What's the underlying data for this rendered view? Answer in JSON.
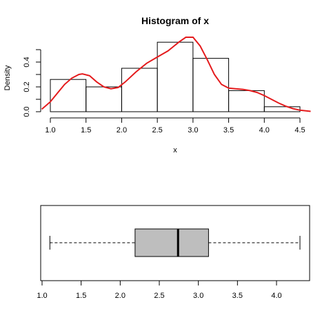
{
  "chart_data": [
    {
      "type": "histogram",
      "title": "Histogram of x",
      "xlabel": "x",
      "ylabel": "Density",
      "x_ticks": [
        "1.0",
        "1.5",
        "2.0",
        "2.5",
        "3.0",
        "3.5",
        "4.0",
        "4.5"
      ],
      "y_ticks": [
        "0.0",
        "0.2",
        "0.4"
      ],
      "xlim": [
        0.9,
        4.65
      ],
      "ylim": [
        0,
        0.5
      ],
      "bins": [
        {
          "from": 1.0,
          "to": 1.5,
          "density": 0.26
        },
        {
          "from": 1.5,
          "to": 2.0,
          "density": 0.2
        },
        {
          "from": 2.0,
          "to": 2.5,
          "density": 0.35
        },
        {
          "from": 2.5,
          "to": 3.0,
          "density": 0.56
        },
        {
          "from": 3.0,
          "to": 3.5,
          "density": 0.43
        },
        {
          "from": 3.5,
          "to": 4.0,
          "density": 0.17
        },
        {
          "from": 4.0,
          "to": 4.5,
          "density": 0.04
        }
      ],
      "density_curve": {
        "color": "#e41a1c",
        "x": [
          0.88,
          1.0,
          1.1,
          1.2,
          1.3,
          1.4,
          1.45,
          1.55,
          1.65,
          1.75,
          1.85,
          1.95,
          2.05,
          2.2,
          2.35,
          2.5,
          2.65,
          2.8,
          2.9,
          3.0,
          3.1,
          3.2,
          3.3,
          3.4,
          3.5,
          3.6,
          3.7,
          3.8,
          3.9,
          4.0,
          4.1,
          4.2,
          4.3,
          4.4,
          4.5,
          4.65
        ],
        "y": [
          0.02,
          0.08,
          0.15,
          0.22,
          0.27,
          0.3,
          0.305,
          0.29,
          0.24,
          0.2,
          0.185,
          0.195,
          0.24,
          0.32,
          0.39,
          0.44,
          0.49,
          0.56,
          0.6,
          0.6,
          0.53,
          0.42,
          0.3,
          0.22,
          0.19,
          0.185,
          0.18,
          0.17,
          0.155,
          0.13,
          0.1,
          0.07,
          0.045,
          0.025,
          0.012,
          0.003
        ]
      }
    },
    {
      "type": "boxplot",
      "x_ticks": [
        "1.0",
        "1.5",
        "2.0",
        "2.5",
        "3.0",
        "3.5",
        "4.0"
      ],
      "xlim": [
        1.0,
        4.3
      ],
      "whisker_low": 1.1,
      "q1": 2.19,
      "median": 2.74,
      "q3": 3.13,
      "whisker_high": 4.3,
      "box_fill": "#bebebe"
    }
  ]
}
